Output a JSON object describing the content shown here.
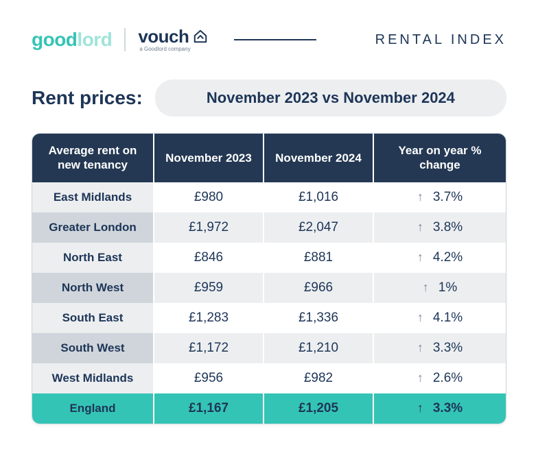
{
  "brand": {
    "goodlord_parts": [
      {
        "text": "good",
        "color": "#34c4b5"
      },
      {
        "text": "lord",
        "color": "#9fe4da"
      }
    ],
    "vouch": "vouch",
    "vouch_sub": "a Goodlord company",
    "index_title": "RENTAL INDEX"
  },
  "title": {
    "label": "Rent prices:",
    "period": "November 2023 vs November 2024"
  },
  "table": {
    "headers": {
      "region": "Average rent on new tenancy",
      "col_a": "November 2023",
      "col_b": "November 2024",
      "yoy": "Year on year % change"
    },
    "rows": [
      {
        "region": "East Midlands",
        "a": "£980",
        "b": "£1,016",
        "yoy": "3.7%"
      },
      {
        "region": "Greater London",
        "a": "£1,972",
        "b": "£2,047",
        "yoy": "3.8%"
      },
      {
        "region": "North East",
        "a": "£846",
        "b": "£881",
        "yoy": "4.2%"
      },
      {
        "region": "North West",
        "a": "£959",
        "b": "£966",
        "yoy": "1%"
      },
      {
        "region": "South East",
        "a": "£1,283",
        "b": "£1,336",
        "yoy": "4.1%"
      },
      {
        "region": "South West",
        "a": "£1,172",
        "b": "£1,210",
        "yoy": "3.3%"
      },
      {
        "region": "West Midlands",
        "a": "£956",
        "b": "£982",
        "yoy": "2.6%"
      }
    ],
    "total": {
      "region": "England",
      "a": "£1,167",
      "b": "£1,205",
      "yoy": "3.3%"
    }
  },
  "style": {
    "header_bg": "#243853",
    "highlight_bg": "#34c4b5",
    "text_color": "#1d3557"
  }
}
